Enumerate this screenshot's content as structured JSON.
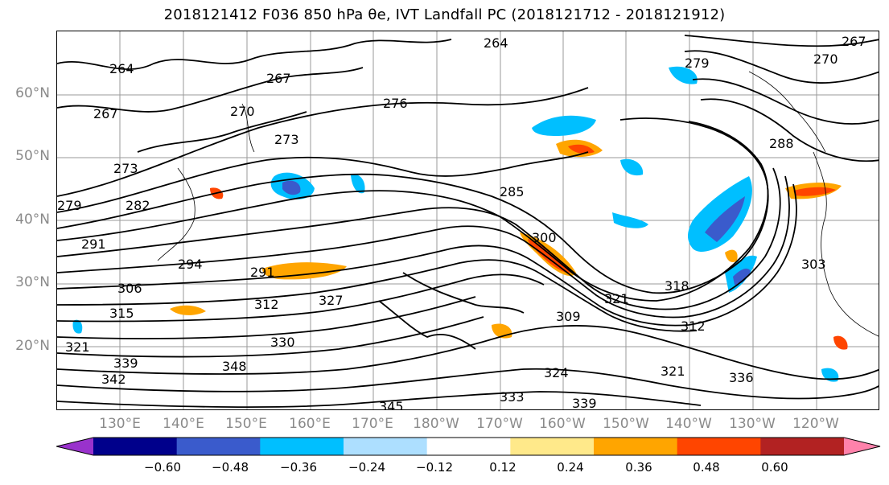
{
  "title": "2018121412 F036 850 hPa θe, IVT Landfall PC (2018121712 - 2018121912)",
  "lat_labels": [
    "60°N",
    "50°N",
    "40°N",
    "30°N",
    "20°N"
  ],
  "lon_labels": [
    "130°E",
    "140°E",
    "150°E",
    "160°E",
    "170°E",
    "180°W",
    "170°W",
    "160°W",
    "150°W",
    "140°W",
    "130°W",
    "120°W"
  ],
  "contour_labels": [
    "264",
    "267",
    "270",
    "273",
    "276",
    "279",
    "282",
    "285",
    "288",
    "291",
    "294",
    "300",
    "303",
    "306",
    "309",
    "312",
    "315",
    "318",
    "321",
    "324",
    "327",
    "330",
    "333",
    "336",
    "339",
    "342",
    "345",
    "348"
  ],
  "colorbar": {
    "colors": [
      "#9932CC",
      "#00008B",
      "#3A5BCC",
      "#00BFFF",
      "#ADDFFF",
      "#FFFFFF",
      "#FFE98A",
      "#FFA500",
      "#FF4500",
      "#B22222",
      "#FF82AB"
    ],
    "ticks": [
      "−0.60",
      "−0.48",
      "−0.36",
      "−0.24",
      "−0.12",
      "0.12",
      "0.24",
      "0.36",
      "0.48",
      "0.60"
    ]
  }
}
